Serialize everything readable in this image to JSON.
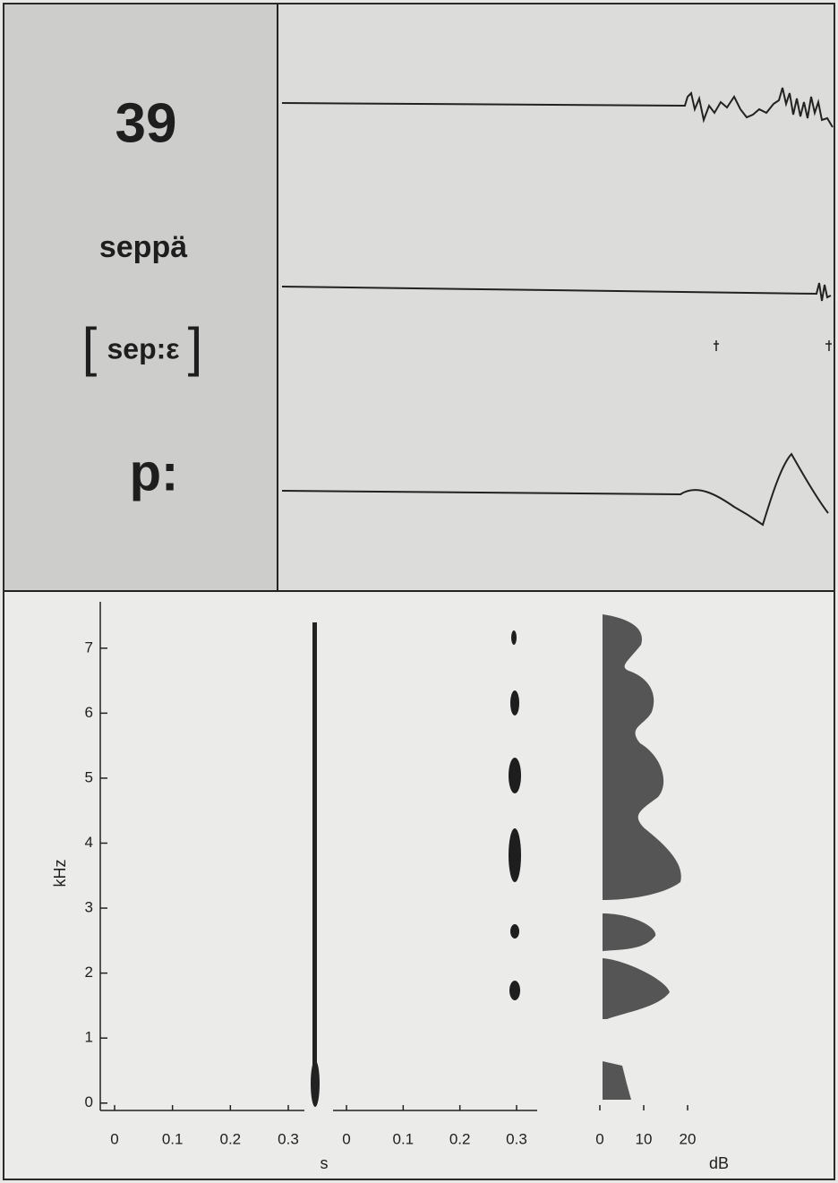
{
  "panel": {
    "number": "39",
    "word": "seppä",
    "bracket_open": "[",
    "transcription": "sep:ε",
    "bracket_close": "]",
    "phoneme": "p:"
  },
  "spectrogram": {
    "y_label": "kHz",
    "ylim": [
      -0.1,
      7.7
    ],
    "yticks": [
      0,
      1,
      2,
      3,
      4,
      5,
      6,
      7
    ],
    "time_axes": [
      {
        "xlim": [
          0,
          0.3
        ],
        "xticks": [
          0,
          0.1,
          0.2,
          0.3
        ]
      },
      {
        "xlim": [
          0,
          0.3
        ],
        "xticks": [
          0,
          0.1,
          0.2,
          0.3
        ]
      }
    ],
    "x_label": "s",
    "db_axis": {
      "xlim": [
        0,
        20
      ],
      "xticks": [
        0,
        10,
        20
      ]
    },
    "db_label": "dB"
  }
}
